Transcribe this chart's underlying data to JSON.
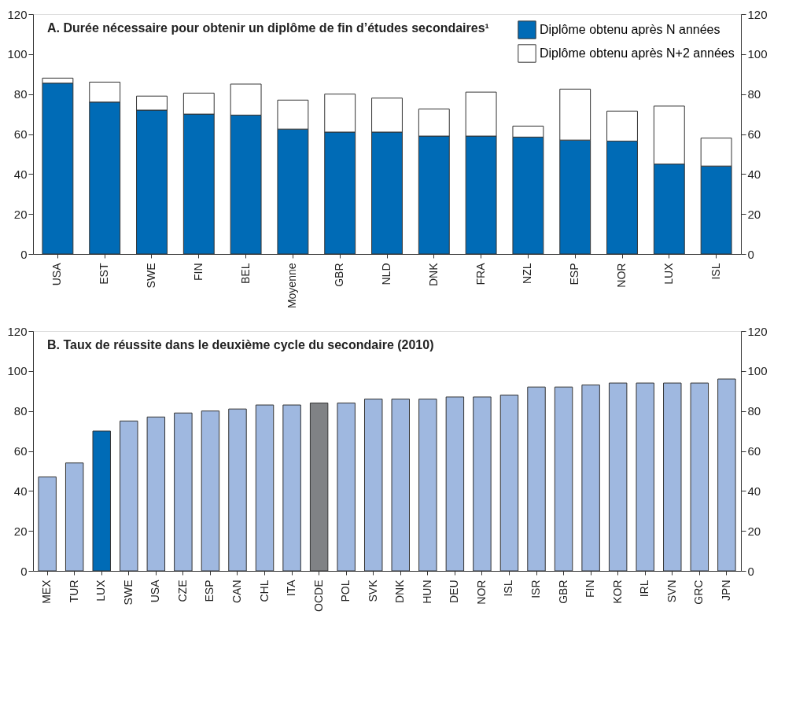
{
  "chart_data": [
    {
      "type": "bar",
      "title": "A. Durée nécessaire pour obtenir un diplôme de fin d’études secondaires¹",
      "categories": [
        "USA",
        "EST",
        "SWE",
        "FIN",
        "BEL",
        "Moyenne",
        "GBR",
        "NLD",
        "DNK",
        "FRA",
        "NZL",
        "ESP",
        "NOR",
        "LUX",
        "ISL"
      ],
      "stacked": true,
      "series": [
        {
          "name": "Diplôme obtenu après N années",
          "color": "#006bb6",
          "values": [
            85.5,
            76,
            72,
            70,
            69.5,
            62.5,
            61,
            61,
            59,
            59,
            58.5,
            57,
            56.5,
            45,
            44
          ]
        },
        {
          "name": "Diplôme obtenu après N+2 années",
          "color": "#ffffff",
          "values": [
            2.5,
            10,
            7,
            10.5,
            15.5,
            14.5,
            19,
            17,
            13.5,
            22,
            5.5,
            25.5,
            15,
            29,
            14
          ]
        }
      ],
      "ylim": [
        0,
        120
      ],
      "yticks": [
        0,
        20,
        40,
        60,
        80,
        100,
        120
      ],
      "y2lim": [
        0,
        120
      ],
      "y2ticks": [
        0,
        20,
        40,
        60,
        80,
        100,
        120
      ],
      "legend": "top right",
      "grid": false
    },
    {
      "type": "bar",
      "title": "B. Taux de réussite dans le deuxième cycle du secondaire (2010)",
      "categories": [
        "MEX",
        "TUR",
        "LUX",
        "SWE",
        "USA",
        "CZE",
        "ESP",
        "CAN",
        "CHL",
        "ITA",
        "OCDE",
        "POL",
        "SVK",
        "DNK",
        "HUN",
        "DEU",
        "NOR",
        "ISL",
        "ISR",
        "GBR",
        "FIN",
        "KOR",
        "IRL",
        "SVN",
        "GRC",
        "JPN"
      ],
      "values": [
        47,
        54,
        70,
        75,
        77,
        79,
        80,
        81,
        83,
        83,
        84,
        84,
        86,
        86,
        86,
        87,
        87,
        88,
        92,
        92,
        93,
        94,
        94,
        94,
        94,
        96
      ],
      "colors": [
        "#9fb8e0",
        "#9fb8e0",
        "#006bb6",
        "#9fb8e0",
        "#9fb8e0",
        "#9fb8e0",
        "#9fb8e0",
        "#9fb8e0",
        "#9fb8e0",
        "#9fb8e0",
        "#808285",
        "#9fb8e0",
        "#9fb8e0",
        "#9fb8e0",
        "#9fb8e0",
        "#9fb8e0",
        "#9fb8e0",
        "#9fb8e0",
        "#9fb8e0",
        "#9fb8e0",
        "#9fb8e0",
        "#9fb8e0",
        "#9fb8e0",
        "#9fb8e0",
        "#9fb8e0",
        "#9fb8e0"
      ],
      "ylim": [
        0,
        120
      ],
      "yticks": [
        0,
        20,
        40,
        60,
        80,
        100,
        120
      ],
      "y2lim": [
        0,
        120
      ],
      "y2ticks": [
        0,
        20,
        40,
        60,
        80,
        100,
        120
      ],
      "legend": false,
      "grid": false
    }
  ]
}
